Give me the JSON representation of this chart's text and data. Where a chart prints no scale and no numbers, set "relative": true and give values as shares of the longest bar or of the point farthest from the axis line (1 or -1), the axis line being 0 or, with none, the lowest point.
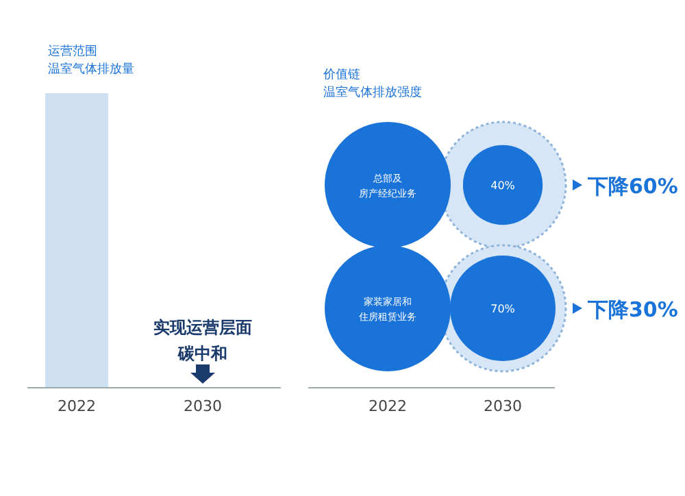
{
  "chart_data": [
    {
      "type": "bar",
      "relative": true,
      "title": "运营范围",
      "subtitle": "温室气体排放量",
      "categories": [
        "2022",
        "2030"
      ],
      "values": [
        1,
        0
      ],
      "color": "#cfe0f2",
      "annotations": [
        "实现运营层面碳中和"
      ]
    },
    {
      "type": "other",
      "title": "价值链",
      "subtitle": "温室气体排放强度",
      "categories": [
        "2022",
        "2030"
      ],
      "series": [
        {
          "color": "#1a73d9",
          "values": [
            null,
            40
          ],
          "value_labels": [
            null,
            "40%"
          ]
        },
        {
          "color": "#1a73d9",
          "values": [
            null,
            70
          ],
          "value_labels": [
            null,
            "70%"
          ]
        }
      ],
      "annotations": [
        "总部及房产经纪业务",
        "家装家居和住房租赁业务",
        "下降60%",
        "下降30%"
      ]
    }
  ]
}
